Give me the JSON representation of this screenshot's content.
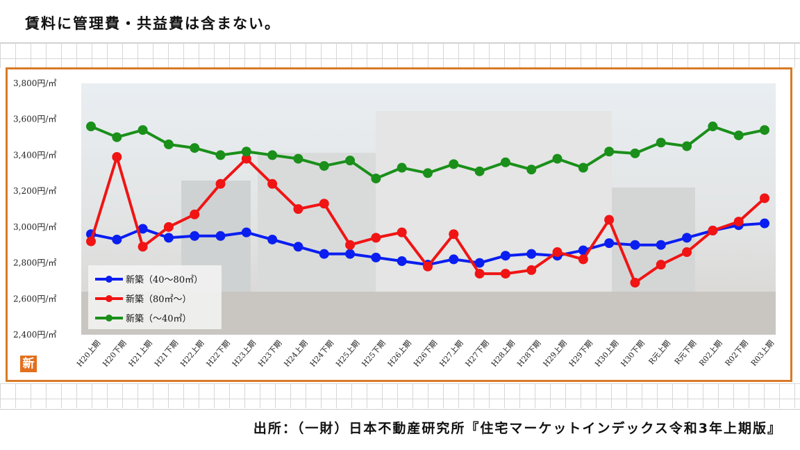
{
  "header": {
    "note": "賃料に管理費・共益費は含まない。"
  },
  "footer": {
    "source": "出所：（一財）日本不動産研究所『住宅マーケットインデックス令和3年上期版』"
  },
  "badge": {
    "label": "新"
  },
  "colors": {
    "frame": "#d97a26",
    "blue": "#0a1ef0",
    "red": "#f01414",
    "green": "#1a8f1a",
    "badge": "#e36f1e"
  },
  "chart_data": {
    "type": "line",
    "y_unit": "円/㎡",
    "ylim": [
      2400,
      3800
    ],
    "yticks": [
      "3,800円/㎡",
      "3,600円/㎡",
      "3,400円/㎡",
      "3,200円/㎡",
      "3,000円/㎡",
      "2,800円/㎡",
      "2,600円/㎡",
      "2,400円/㎡"
    ],
    "ytick_values": [
      3800,
      3600,
      3400,
      3200,
      3000,
      2800,
      2600,
      2400
    ],
    "categories": [
      "H20上期",
      "H20下期",
      "H21上期",
      "H21下期",
      "H22上期",
      "H22下期",
      "H23上期",
      "H23下期",
      "H24上期",
      "H24下期",
      "H25上期",
      "H25下期",
      "H26上期",
      "H26下期",
      "H27上期",
      "H27下期",
      "H28上期",
      "H28下期",
      "H29上期",
      "H29下期",
      "H30上期",
      "H30下期",
      "R元上期",
      "R元下期",
      "R02上期",
      "R02下期",
      "R03上期"
    ],
    "legend_position": "bottom-left",
    "series": [
      {
        "name": "新築（40～80㎡）",
        "color": "#0a1ef0",
        "values": [
          2960,
          2930,
          2990,
          2940,
          2950,
          2950,
          2970,
          2930,
          2890,
          2850,
          2850,
          2830,
          2810,
          2790,
          2820,
          2800,
          2840,
          2850,
          2840,
          2870,
          2910,
          2900,
          2900,
          2940,
          2980,
          3010,
          3020
        ]
      },
      {
        "name": "新築（80㎡～）",
        "color": "#f01414",
        "values": [
          2920,
          3390,
          2890,
          3000,
          3070,
          3240,
          3380,
          3240,
          3100,
          3130,
          2900,
          2940,
          2970,
          2780,
          2960,
          2740,
          2740,
          2760,
          2860,
          2820,
          3040,
          2690,
          2790,
          2860,
          2980,
          3030,
          3160
        ]
      },
      {
        "name": "新築（～40㎡）",
        "color": "#1a8f1a",
        "values": [
          3560,
          3500,
          3540,
          3460,
          3440,
          3400,
          3420,
          3400,
          3380,
          3340,
          3370,
          3270,
          3330,
          3300,
          3350,
          3310,
          3360,
          3320,
          3380,
          3330,
          3420,
          3410,
          3470,
          3450,
          3560,
          3510,
          3540
        ]
      }
    ]
  }
}
